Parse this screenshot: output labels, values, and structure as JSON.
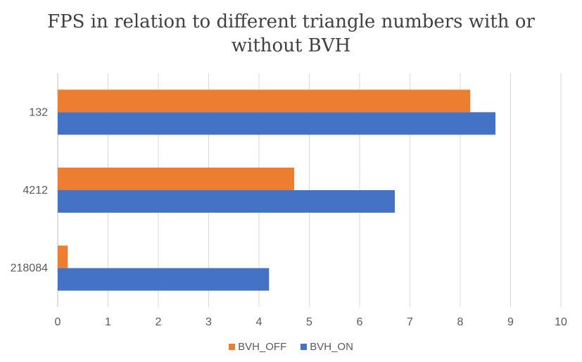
{
  "chart_data": {
    "type": "bar",
    "orientation": "horizontal",
    "title": "FPS in relation to different triangle numbers with or without BVH",
    "title_lines": [
      "FPS in relation to different triangle numbers with or",
      "without BVH"
    ],
    "xlabel": "",
    "ylabel": "",
    "categories": [
      "132",
      "4212",
      "218084"
    ],
    "series": [
      {
        "name": "BVH_OFF",
        "values": [
          8.2,
          4.7,
          0.2
        ],
        "color": "#ED7D31"
      },
      {
        "name": "BVH_ON",
        "values": [
          8.7,
          6.7,
          4.2
        ],
        "color": "#4472C4"
      }
    ],
    "xlim": [
      0,
      10
    ],
    "xticks": [
      "0",
      "1",
      "2",
      "3",
      "4",
      "5",
      "6",
      "7",
      "8",
      "9",
      "10"
    ],
    "grid": true,
    "legend_position": "bottom"
  }
}
